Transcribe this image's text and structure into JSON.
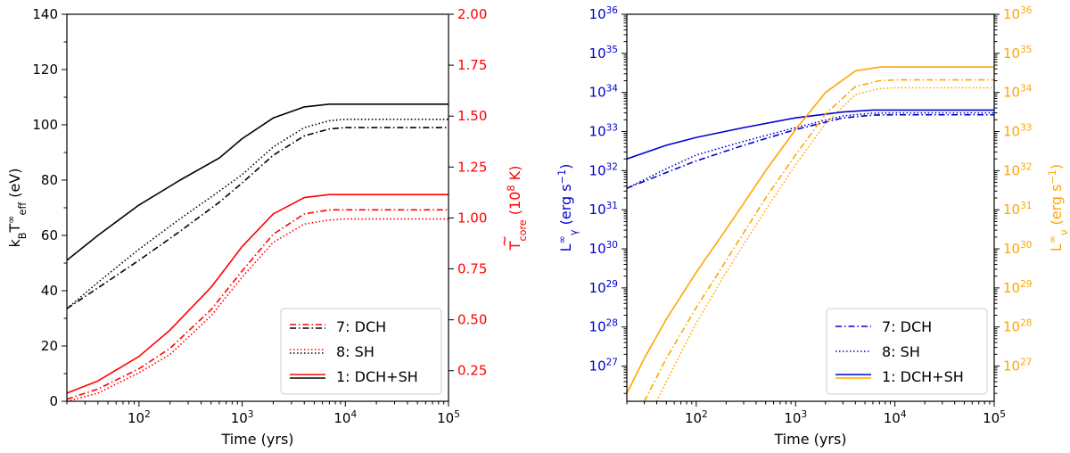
{
  "chart_data": [
    {
      "type": "line",
      "panel": "left",
      "xlabel": "Time (yrs)",
      "x_scale": "log",
      "xlim": [
        20,
        100000
      ],
      "x_ticks": [
        {
          "value": 100,
          "label": "10",
          "exp": "2"
        },
        {
          "value": 1000,
          "label": "10",
          "exp": "3"
        },
        {
          "value": 10000,
          "label": "10",
          "exp": "4"
        },
        {
          "value": 100000,
          "label": "10",
          "exp": "5"
        }
      ],
      "left_axis": {
        "label": "k_B T_eff^∞ (eV)",
        "label_parts": {
          "main": "k",
          "sub1": "B",
          "t": "T",
          "sub2": "eff",
          "sup": "∞",
          "unit": " (eV)"
        },
        "color": "#000000",
        "ylim": [
          0,
          140
        ],
        "ticks": [
          "0",
          "20",
          "40",
          "60",
          "80",
          "100",
          "120",
          "140"
        ]
      },
      "right_axis": {
        "label": "T̃_core (10^8 K)",
        "label_parts": {
          "main": "T",
          "sub": "core",
          "unit1": " (10",
          "exp": "8",
          "unit2": " K)"
        },
        "color": "#ff0000",
        "ylim": [
          0.1,
          2.0
        ],
        "ticks": [
          "0.25",
          "0.50",
          "0.75",
          "1.00",
          "1.25",
          "1.50",
          "1.75",
          "2.00"
        ]
      },
      "series": [
        {
          "name": "1: DCH+SH (T_eff)",
          "axis": "left",
          "color": "#000000",
          "style": "solid",
          "x": [
            20,
            40,
            100,
            250,
            600,
            1000,
            2000,
            4000,
            7000,
            10000,
            100000
          ],
          "y": [
            51,
            60,
            71,
            80,
            88,
            95,
            102.5,
            106.5,
            107.5,
            107.5,
            107.5
          ]
        },
        {
          "name": "8: SH (T_eff)",
          "axis": "left",
          "color": "#000000",
          "style": "dotted",
          "x": [
            20,
            40,
            100,
            250,
            600,
            1000,
            2000,
            4000,
            7000,
            10000,
            100000
          ],
          "y": [
            33.5,
            43,
            55,
            66,
            76,
            82,
            92,
            99,
            101.5,
            102,
            102
          ]
        },
        {
          "name": "7: DCH (T_eff)",
          "axis": "left",
          "color": "#000000",
          "style": "dashdot",
          "x": [
            20,
            40,
            100,
            250,
            600,
            1000,
            2000,
            4000,
            7000,
            10000,
            100000
          ],
          "y": [
            33.5,
            41,
            51,
            61.5,
            72,
            79,
            89,
            96,
            98.5,
            99,
            99
          ]
        },
        {
          "name": "1: DCH+SH (T_core)",
          "axis": "right",
          "color": "#ff0000",
          "style": "solid",
          "x": [
            20,
            40,
            100,
            200,
            500,
            1000,
            2000,
            4000,
            7000,
            10000,
            100000
          ],
          "y": [
            0.14,
            0.2,
            0.32,
            0.45,
            0.66,
            0.86,
            1.02,
            1.1,
            1.115,
            1.115,
            1.115
          ]
        },
        {
          "name": "7: DCH (T_core)",
          "axis": "right",
          "color": "#ff0000",
          "style": "dashdot",
          "x": [
            20,
            40,
            100,
            200,
            500,
            1000,
            2000,
            4000,
            7000,
            10000,
            100000
          ],
          "y": [
            0.11,
            0.16,
            0.26,
            0.36,
            0.55,
            0.74,
            0.92,
            1.02,
            1.04,
            1.04,
            1.04
          ]
        },
        {
          "name": "8: SH (T_core)",
          "axis": "right",
          "color": "#ff0000",
          "style": "dotted",
          "x": [
            20,
            40,
            100,
            200,
            500,
            1000,
            2000,
            4000,
            7000,
            10000,
            100000
          ],
          "y": [
            0.1,
            0.14,
            0.24,
            0.33,
            0.52,
            0.71,
            0.88,
            0.97,
            0.99,
            0.995,
            0.995
          ]
        }
      ],
      "legend": {
        "placement": "lower-right",
        "entries": [
          {
            "label": "7: DCH",
            "style": "dashdot",
            "colors": [
              "#ff0000",
              "#000000"
            ]
          },
          {
            "label": "8: SH",
            "style": "dotted",
            "colors": [
              "#ff0000",
              "#000000"
            ]
          },
          {
            "label": "1: DCH+SH",
            "style": "solid",
            "colors": [
              "#ff0000",
              "#000000"
            ]
          }
        ]
      }
    },
    {
      "type": "line",
      "panel": "right",
      "xlabel": "Time (yrs)",
      "x_scale": "log",
      "xlim": [
        20,
        100000
      ],
      "x_ticks": [
        {
          "value": 100,
          "label": "10",
          "exp": "2"
        },
        {
          "value": 1000,
          "label": "10",
          "exp": "3"
        },
        {
          "value": 10000,
          "label": "10",
          "exp": "4"
        },
        {
          "value": 100000,
          "label": "10",
          "exp": "5"
        }
      ],
      "left_axis": {
        "label": "L_γ^∞ (erg s^-1)",
        "label_parts": {
          "main": "L",
          "sub": "γ",
          "sup": "∞",
          "unit1": " (erg s",
          "exp": "−1",
          "unit2": ")"
        },
        "color": "#0000cd",
        "scale": "log",
        "ylim_log10": [
          26.1,
          36
        ],
        "ticks": [
          {
            "value": 27,
            "label": "10",
            "exp": "27"
          },
          {
            "value": 28,
            "label": "10",
            "exp": "28"
          },
          {
            "value": 29,
            "label": "10",
            "exp": "29"
          },
          {
            "value": 30,
            "label": "10",
            "exp": "30"
          },
          {
            "value": 31,
            "label": "10",
            "exp": "31"
          },
          {
            "value": 32,
            "label": "10",
            "exp": "32"
          },
          {
            "value": 33,
            "label": "10",
            "exp": "33"
          },
          {
            "value": 34,
            "label": "10",
            "exp": "34"
          },
          {
            "value": 35,
            "label": "10",
            "exp": "35"
          },
          {
            "value": 36,
            "label": "10",
            "exp": "36"
          }
        ]
      },
      "right_axis": {
        "label": "L_ν^∞ (erg s^-1)",
        "label_parts": {
          "main": "L",
          "sub": "ν",
          "sup": "∞",
          "unit1": " (erg s",
          "exp": "−1",
          "unit2": ")"
        },
        "color": "#ffa500",
        "scale": "log",
        "ylim_log10": [
          26.1,
          36
        ],
        "ticks": [
          {
            "value": 27,
            "label": "10",
            "exp": "27"
          },
          {
            "value": 28,
            "label": "10",
            "exp": "28"
          },
          {
            "value": 29,
            "label": "10",
            "exp": "29"
          },
          {
            "value": 30,
            "label": "10",
            "exp": "30"
          },
          {
            "value": 31,
            "label": "10",
            "exp": "31"
          },
          {
            "value": 32,
            "label": "10",
            "exp": "32"
          },
          {
            "value": 33,
            "label": "10",
            "exp": "33"
          },
          {
            "value": 34,
            "label": "10",
            "exp": "34"
          },
          {
            "value": 35,
            "label": "10",
            "exp": "35"
          },
          {
            "value": 36,
            "label": "10",
            "exp": "36"
          }
        ]
      },
      "series_log10": true,
      "series": [
        {
          "name": "1: DCH+SH (L_γ)",
          "axis": "left",
          "color": "#0000cd",
          "style": "solid",
          "x": [
            20,
            50,
            100,
            300,
            1000,
            3000,
            6000,
            10000,
            100000
          ],
          "y": [
            32.3,
            32.65,
            32.85,
            33.1,
            33.35,
            33.5,
            33.55,
            33.55,
            33.55
          ]
        },
        {
          "name": "8: SH (L_γ)",
          "axis": "left",
          "color": "#0000cd",
          "style": "dotted",
          "x": [
            20,
            50,
            100,
            300,
            1000,
            3000,
            6000,
            10000,
            100000
          ],
          "y": [
            31.55,
            32.05,
            32.4,
            32.75,
            33.1,
            33.4,
            33.47,
            33.48,
            33.48
          ]
        },
        {
          "name": "7: DCH (L_γ)",
          "axis": "left",
          "color": "#0000cd",
          "style": "dashdot",
          "x": [
            20,
            50,
            100,
            300,
            1000,
            3000,
            6000,
            10000,
            100000
          ],
          "y": [
            31.55,
            31.95,
            32.25,
            32.65,
            33.05,
            33.35,
            33.42,
            33.43,
            33.43
          ]
        },
        {
          "name": "1: DCH+SH (L_ν)",
          "axis": "right",
          "color": "#ffa500",
          "style": "solid",
          "x": [
            20,
            30,
            50,
            100,
            200,
            500,
            1000,
            2000,
            4000,
            7000,
            10000,
            100000
          ],
          "y": [
            26.3,
            27.2,
            28.2,
            29.4,
            30.5,
            32.0,
            33.05,
            34.0,
            34.55,
            34.65,
            34.65,
            34.65
          ]
        },
        {
          "name": "7: DCH (L_ν)",
          "axis": "right",
          "color": "#ffa500",
          "style": "dashdot",
          "x": [
            30,
            50,
            100,
            200,
            500,
            1000,
            2000,
            4000,
            7000,
            10000,
            100000
          ],
          "y": [
            26.1,
            27.2,
            28.5,
            29.7,
            31.3,
            32.4,
            33.45,
            34.15,
            34.3,
            34.32,
            34.32
          ]
        },
        {
          "name": "8: SH (L_ν)",
          "axis": "right",
          "color": "#ffa500",
          "style": "dotted",
          "x": [
            40,
            60,
            100,
            200,
            500,
            1000,
            2000,
            4000,
            7000,
            10000,
            100000
          ],
          "y": [
            26.1,
            27.0,
            28.1,
            29.4,
            31.0,
            32.15,
            33.2,
            33.95,
            34.1,
            34.12,
            34.12
          ]
        }
      ],
      "legend": {
        "placement": "lower-right",
        "entries": [
          {
            "label": "7: DCH",
            "style": "dashdot",
            "colors": [
              "#0000cd"
            ]
          },
          {
            "label": "8: SH",
            "style": "dotted",
            "colors": [
              "#0000cd"
            ]
          },
          {
            "label": "1: DCH+SH",
            "style": "solid",
            "colors": [
              "#0000cd",
              "#ffa500"
            ]
          }
        ]
      }
    }
  ]
}
